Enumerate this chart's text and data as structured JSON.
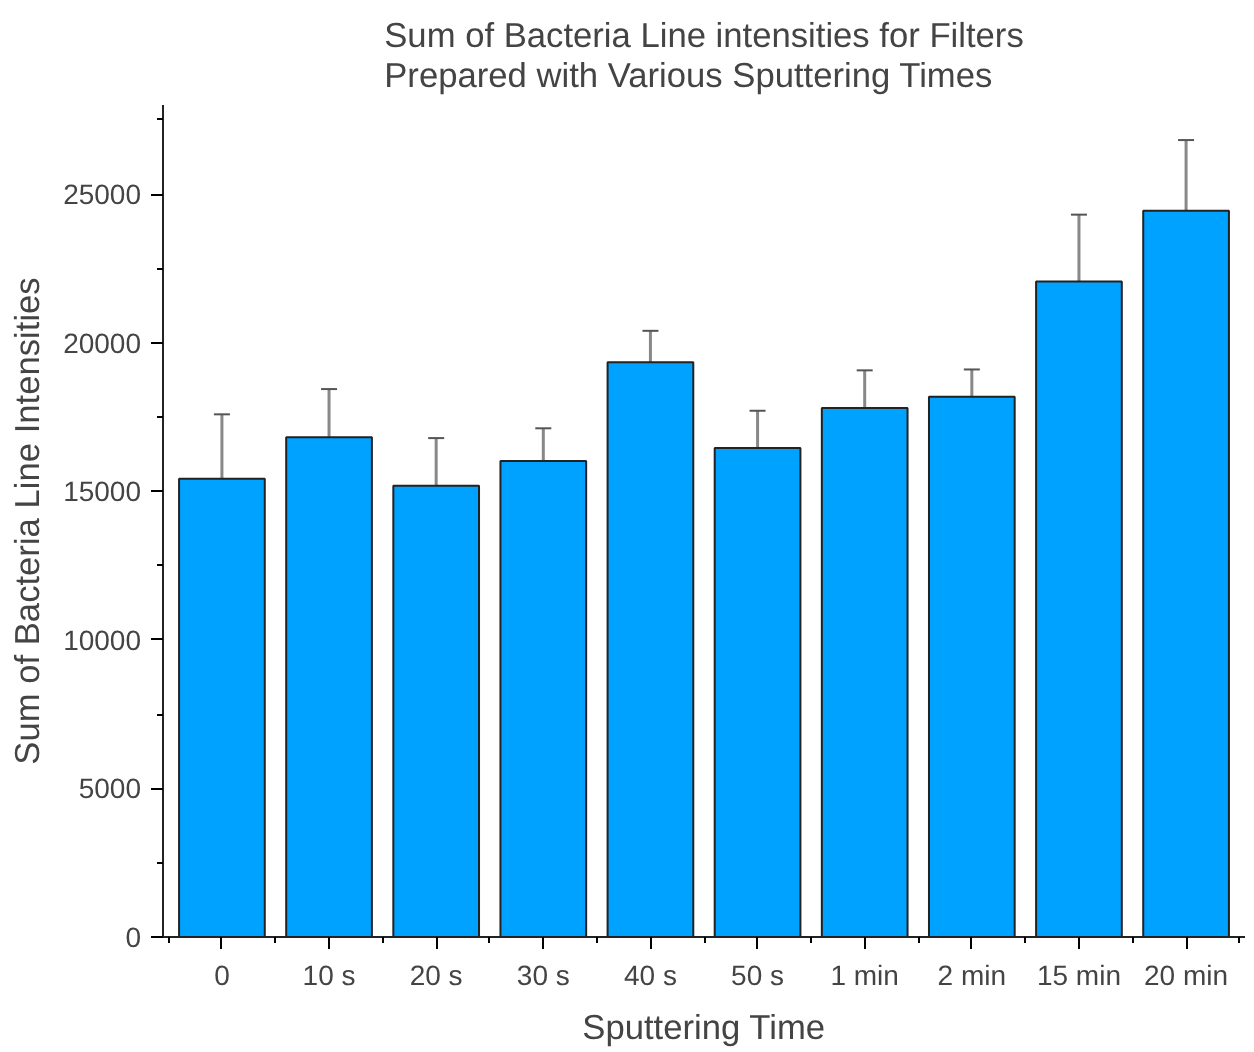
{
  "chart_data": {
    "type": "bar",
    "title": "Sum of Bacteria Line intensities for Filters\nPrepared with Various Sputtering Times",
    "xlabel": "Sputtering Time",
    "ylabel": "Sum of Bacteria Line Intensities",
    "categories": [
      "0",
      "10 s",
      "20 s",
      "30 s",
      "40 s",
      "50 s",
      "1 min",
      "2 min",
      "15 min",
      "20 min"
    ],
    "values": [
      15420,
      16820,
      15190,
      16020,
      19340,
      16460,
      17800,
      18180,
      22060,
      24440
    ],
    "errors": [
      2170,
      1620,
      1600,
      1100,
      1060,
      1250,
      1270,
      920,
      2250,
      2380
    ],
    "color": "#00a2ff",
    "ylim": [
      0,
      28000
    ],
    "yticks": [
      0,
      5000,
      10000,
      15000,
      20000,
      25000
    ],
    "grid": false
  }
}
